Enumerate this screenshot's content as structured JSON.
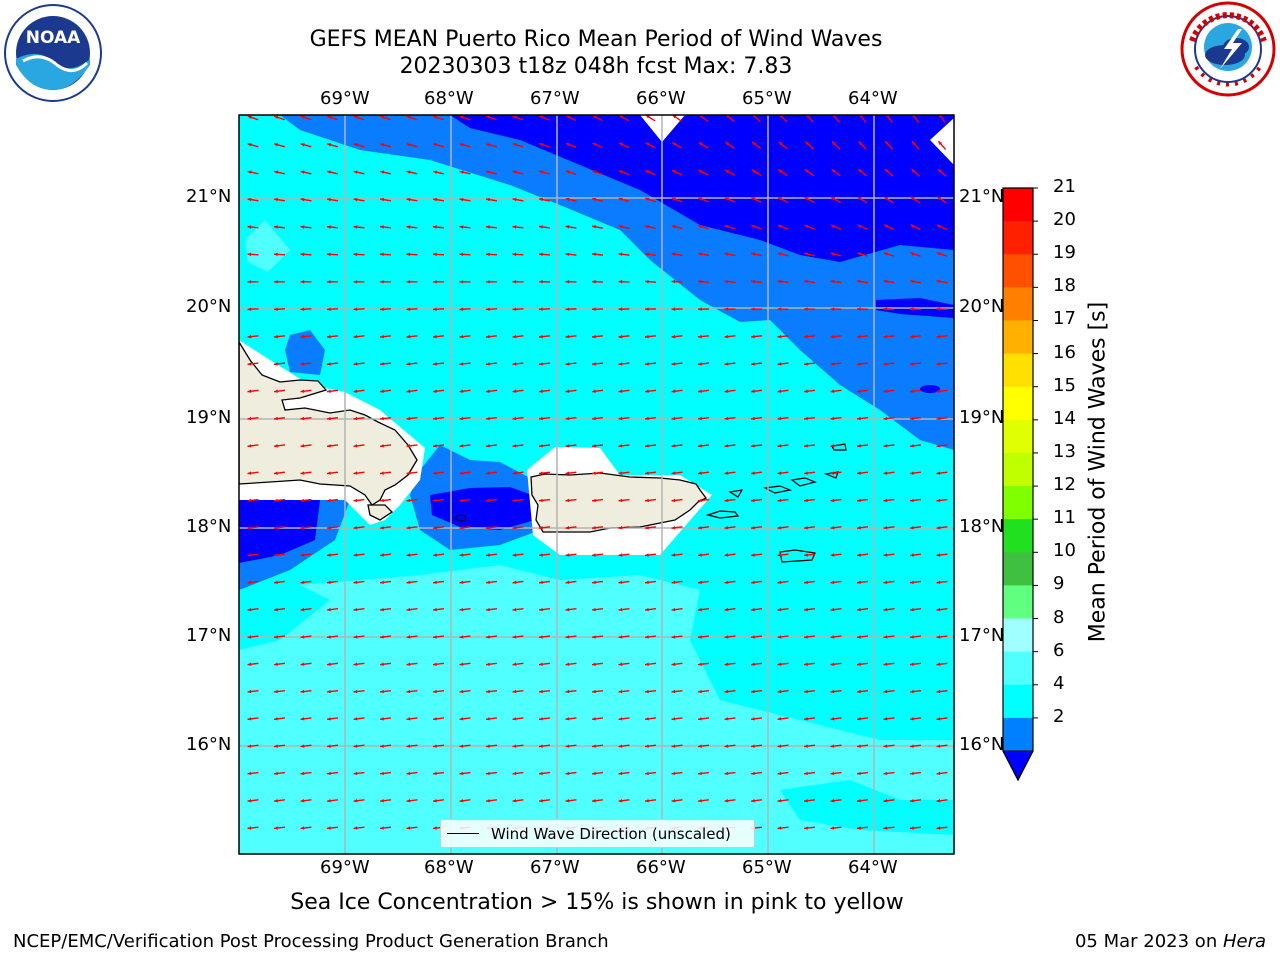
{
  "title_line1": "GEFS MEAN Puerto Rico Mean Period of Wind Waves",
  "title_line2": "20230303 t18z 048h fcst   Max: 7.83",
  "logos": {
    "left": "noaa-logo",
    "right": "national-weather-service-logo",
    "noaa_text": "NOAA"
  },
  "lon_labels": [
    "69°W",
    "68°W",
    "67°W",
    "66°W",
    "65°W",
    "64°W"
  ],
  "lat_labels": [
    "21°N",
    "20°N",
    "19°N",
    "18°N",
    "17°N",
    "16°N"
  ],
  "legend_label": "Wind Wave Direction (unscaled)",
  "ice_note": "Sea Ice Concentration > 15% is shown in pink to yellow",
  "footer_left": "NCEP/EMC/Verification Post Processing Product Generation Branch",
  "footer_date": "05 Mar 2023 on ",
  "footer_machine": "Hera",
  "colorbar": {
    "title": "Mean Period of Wind Waves [s]",
    "ticks": [
      "21",
      "20",
      "19",
      "18",
      "17",
      "16",
      "15",
      "14",
      "13",
      "12",
      "11",
      "10",
      "9",
      "8",
      "6",
      "4",
      "2"
    ],
    "colors": [
      "#ff0000",
      "#ff2000",
      "#ff5000",
      "#ff8000",
      "#ffb000",
      "#ffe000",
      "#ffff00",
      "#e0ff00",
      "#c0ff00",
      "#80ff00",
      "#20e020",
      "#40c040",
      "#60ff80",
      "#a0ffff",
      "#50ffff",
      "#00ffff",
      "#0080ff"
    ],
    "under_color": "#0000ff"
  },
  "map_colors": {
    "land": "#efedde",
    "arrow": "#ff0000",
    "period_2_4": "#0a7cff",
    "period_lt_2": "#0000ff",
    "period_4_6": "#00ffff",
    "period_6_8": "#50ffff"
  }
}
